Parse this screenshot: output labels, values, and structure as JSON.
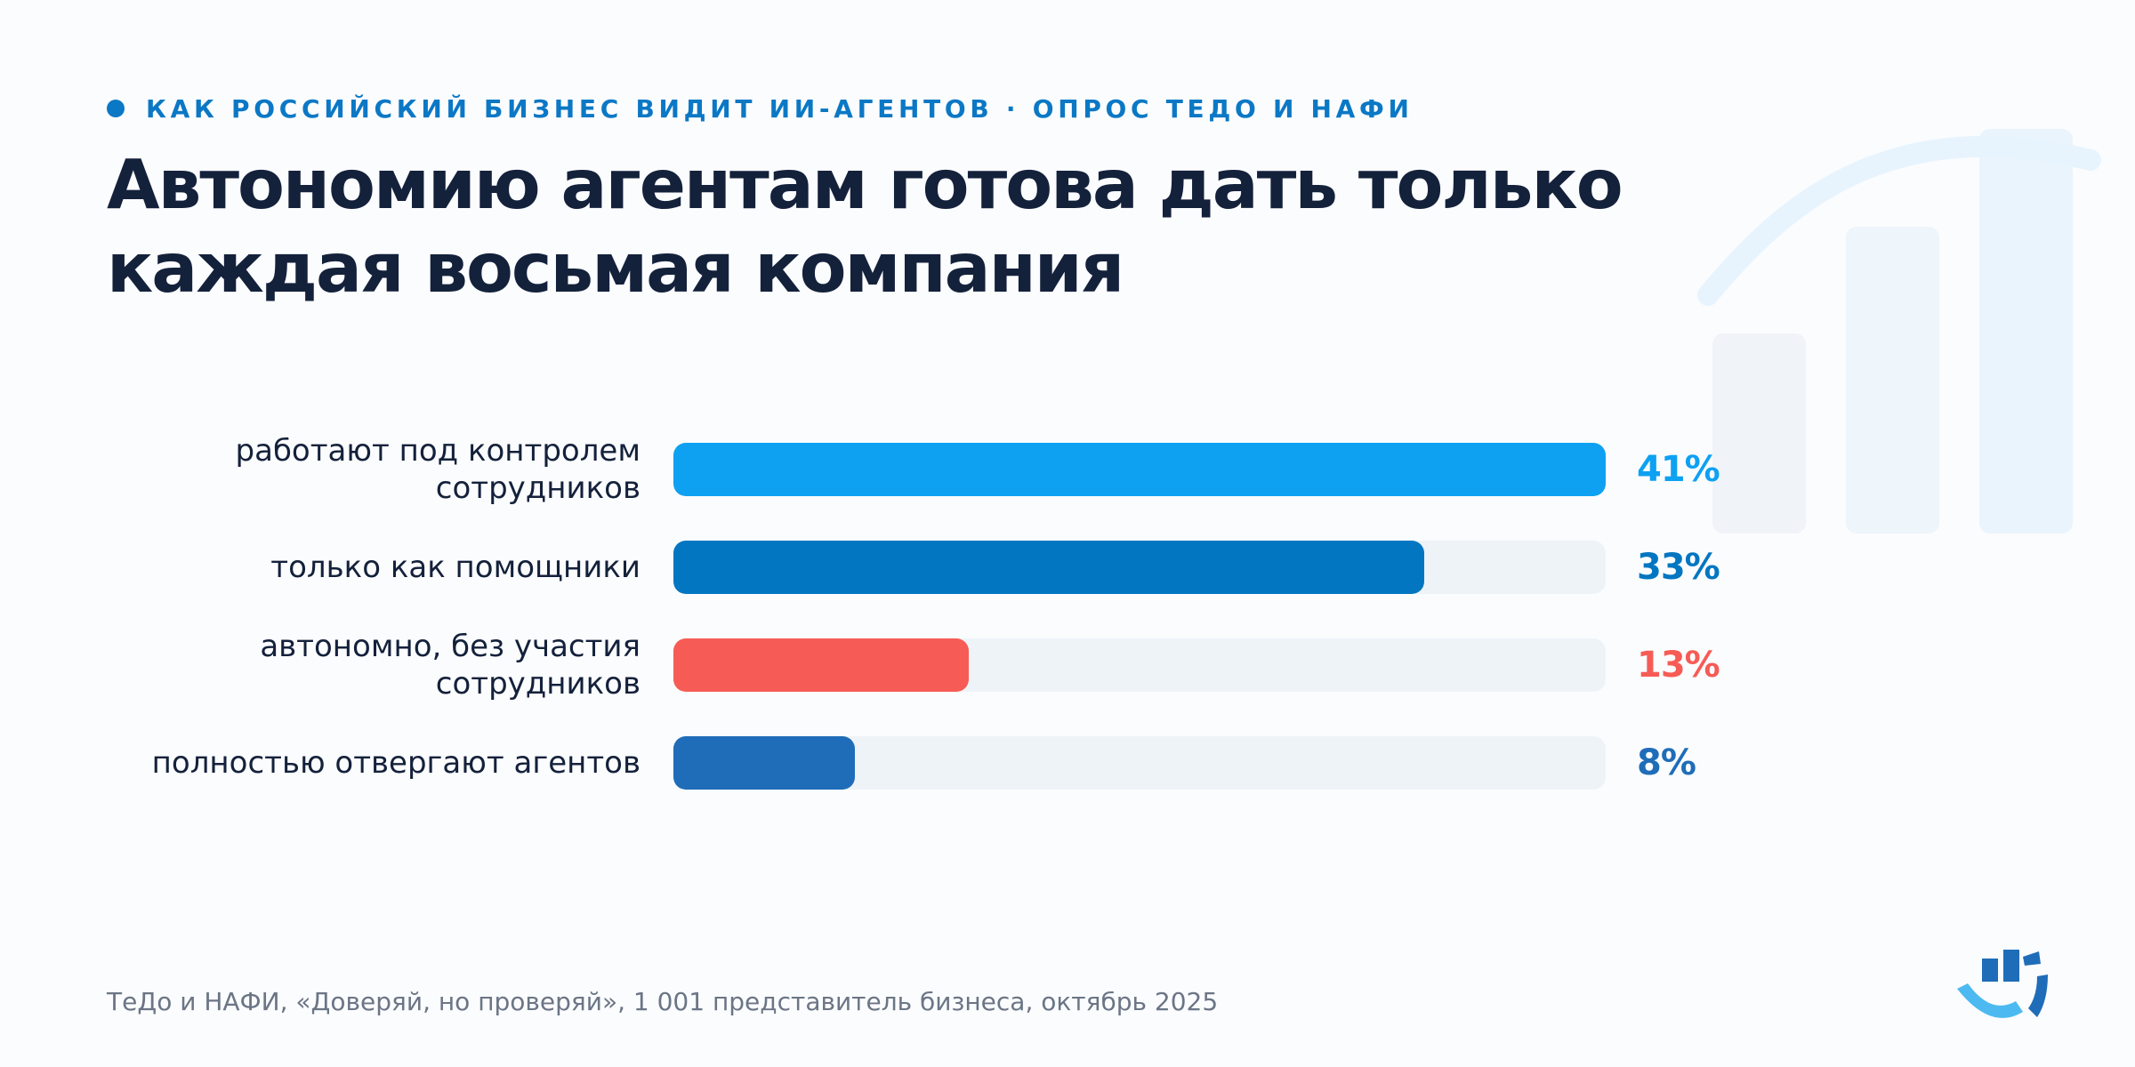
{
  "eyebrow": "КАК РОССИЙСКИЙ БИЗНЕС ВИДИТ ИИ-АГЕНТОВ · ОПРОС ТЕДО И НАФИ",
  "title": {
    "line1": "Автономию агентам готова дать только",
    "line2": "каждая восьмая компания"
  },
  "chart_data": {
    "type": "bar",
    "orientation": "horizontal",
    "categories": [
      "работают под контролем сотрудников",
      "только как помощники",
      "автономно, без участия сотрудников",
      "полностью отвергают агентов"
    ],
    "label_lines": [
      [
        "работают под контролем",
        "сотрудников"
      ],
      [
        "только как помощники"
      ],
      [
        "автономно, без участия",
        "сотрудников"
      ],
      [
        "полностью отвергают агентов"
      ]
    ],
    "values": [
      41,
      33,
      13,
      8
    ],
    "value_labels": [
      "41%",
      "33%",
      "13%",
      "8%"
    ],
    "unit": "%",
    "xlim": [
      0,
      41
    ],
    "colors": [
      "#0ea1f2",
      "#0276c1",
      "#f65c55",
      "#1f6db8"
    ],
    "track_color": "#eef3f8",
    "grid": false,
    "legend": "none"
  },
  "footer": {
    "source": "ТеДо и НАФИ, «Доверяй, но проверяй», 1 001 представитель бизнеса, октябрь 2025"
  },
  "decoration": {
    "background_icon": "bar-chart-growth-icon",
    "logo_icon": "tedo-logo-icon"
  },
  "colors": {
    "accent": "#0b78c5",
    "title": "#14213b",
    "footer": "#6b7585",
    "background": "#fbfcfe"
  }
}
